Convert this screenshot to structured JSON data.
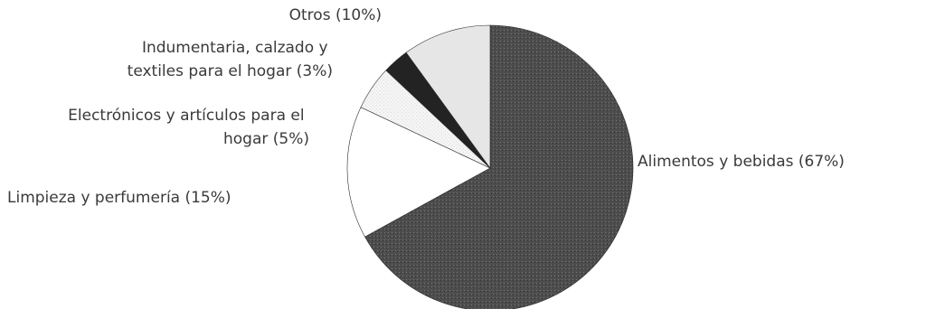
{
  "chart_data": {
    "type": "pie",
    "title": "",
    "start": "top, clockwise",
    "slices": [
      {
        "label": "Alimentos y bebidas (67%)",
        "value": 67,
        "color": "#4d4d4d"
      },
      {
        "label": "Limpieza y perfumería (15%)",
        "value": 15,
        "color": "#ffffff"
      },
      {
        "label": "Electrónicos y artículos para el hogar  (5%)",
        "value": 5,
        "color": "#f3f3f3"
      },
      {
        "label": "Indumentaria, calzado y textiles para el hogar (3%)",
        "value": 3,
        "color": "#232323"
      },
      {
        "label": "Otros (10%)",
        "value": 10,
        "color": "#e6e6e6"
      }
    ]
  }
}
